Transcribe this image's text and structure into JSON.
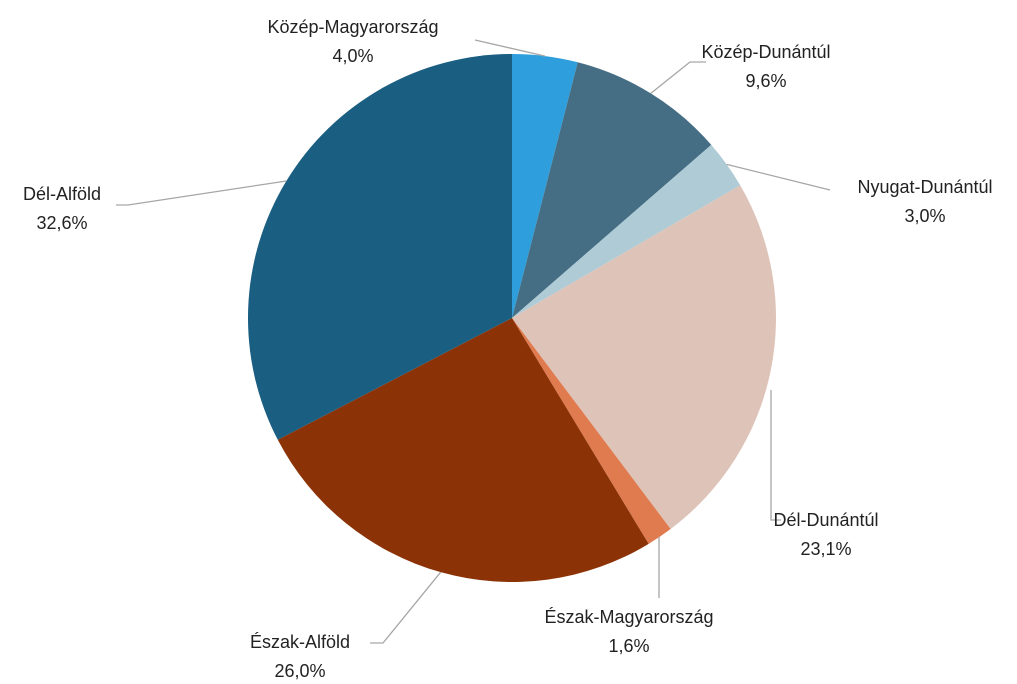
{
  "chart_data": {
    "type": "pie",
    "categories": [
      "Közép-Magyarország",
      "Közép-Dunántúl",
      "Nyugat-Dunántúl",
      "Dél-Dunántúl",
      "Észak-Magyarország",
      "Észak-Alföld",
      "Dél-Alföld"
    ],
    "values": [
      4.0,
      9.6,
      3.0,
      23.1,
      1.6,
      26.0,
      32.6
    ],
    "value_labels": [
      "4,0%",
      "9,6%",
      "3,0%",
      "23,1%",
      "1,6%",
      "26,0%",
      "32,6%"
    ],
    "colors": [
      "#2e9fdc",
      "#456e84",
      "#aecbd6",
      "#dec3b8",
      "#e07b50",
      "#8b3206",
      "#1a5e82"
    ]
  }
}
